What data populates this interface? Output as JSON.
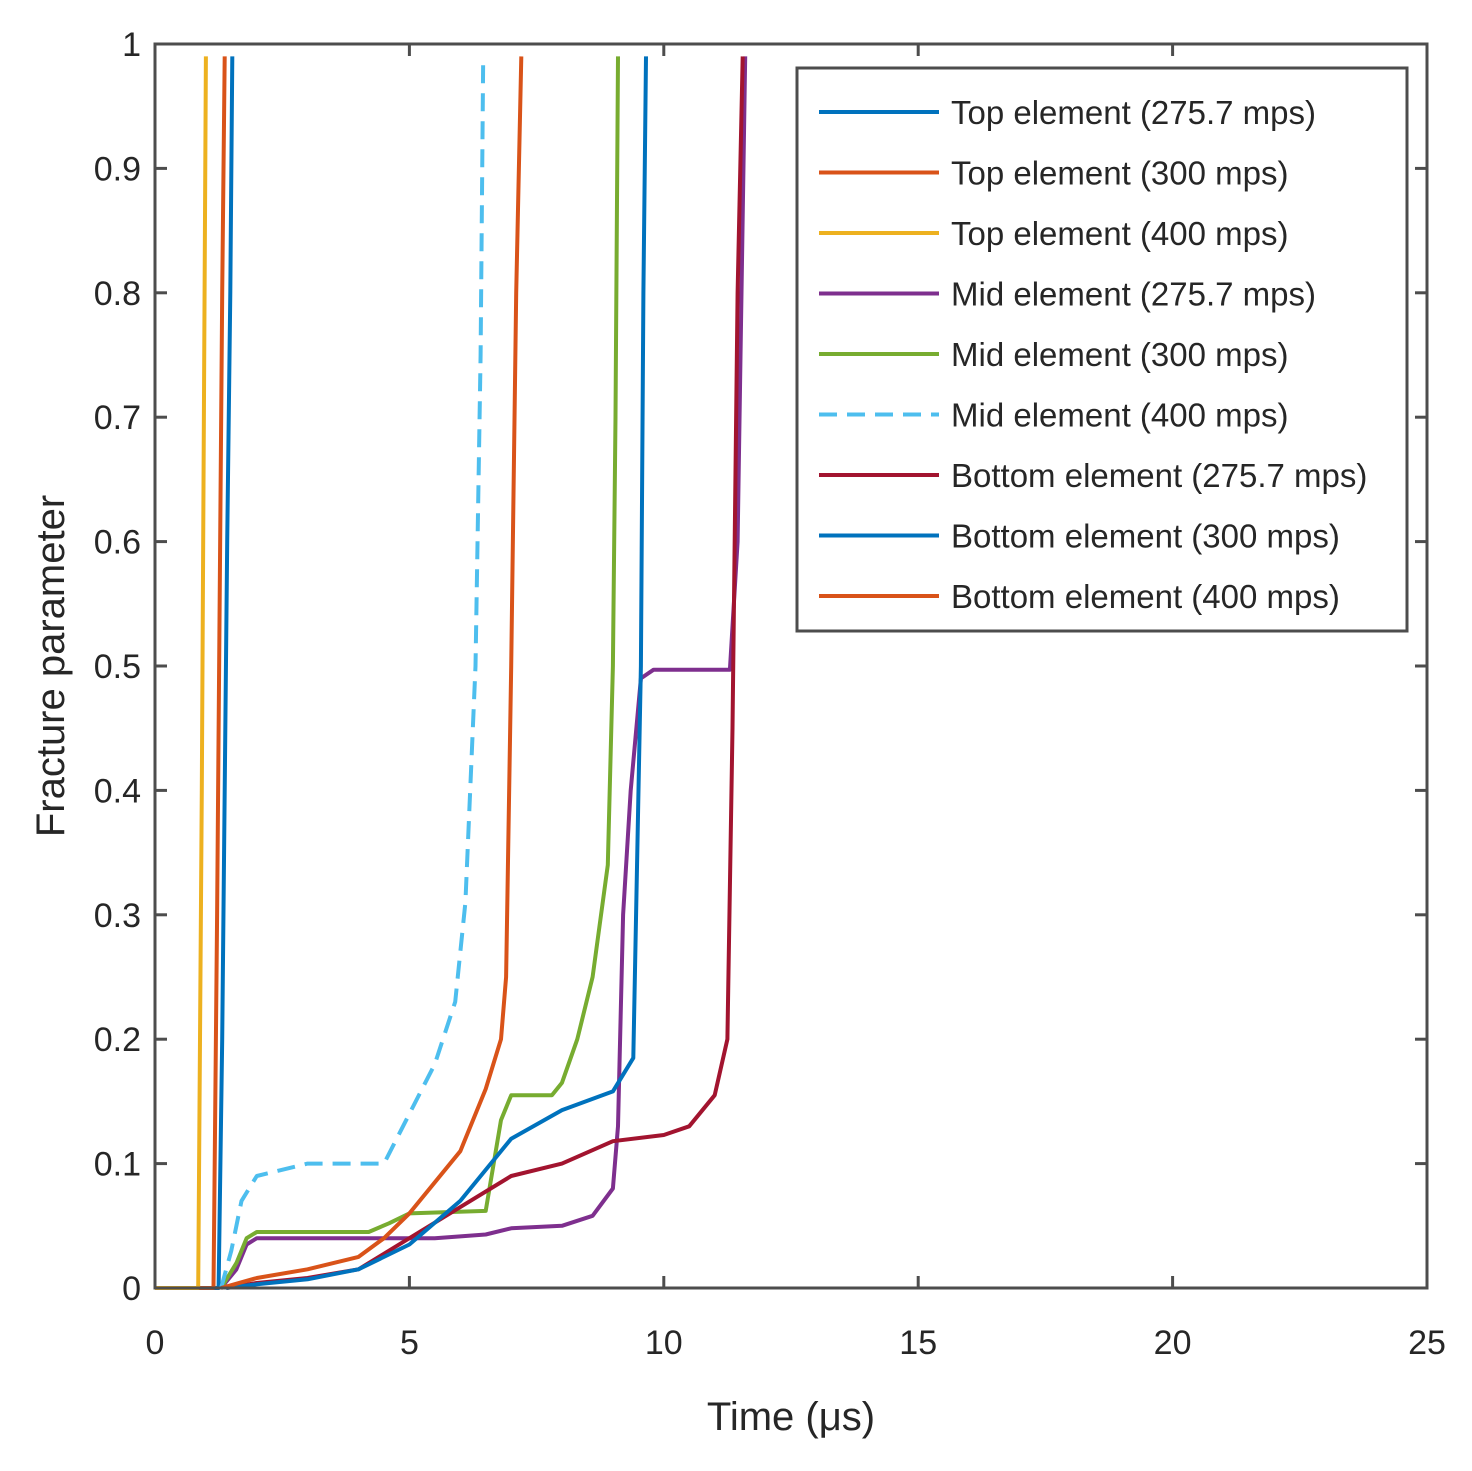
{
  "chart_data": {
    "type": "line",
    "title": "",
    "xlabel": "Time (μs)",
    "ylabel": "Fracture parameter",
    "xlim": [
      0,
      25
    ],
    "ylim": [
      0,
      1
    ],
    "xticks": [
      0,
      5,
      10,
      15,
      20,
      25
    ],
    "yticks": [
      0,
      0.1,
      0.2,
      0.3,
      0.4,
      0.5,
      0.6,
      0.7,
      0.8,
      0.9,
      1
    ],
    "xtick_labels": [
      "0",
      "5",
      "10",
      "15",
      "20",
      "25"
    ],
    "ytick_labels": [
      "0",
      "0.1",
      "0.2",
      "0.3",
      "0.4",
      "0.5",
      "0.6",
      "0.7",
      "0.8",
      "0.9",
      "1"
    ],
    "grid": false,
    "legend_position": "top-right",
    "series": [
      {
        "name": "Top element (275.7 mps)",
        "color": "#0072BD",
        "dash": "solid",
        "points": [
          [
            0,
            0
          ],
          [
            1.25,
            0
          ],
          [
            1.32,
            0.2
          ],
          [
            1.42,
            0.6
          ],
          [
            1.48,
            0.8
          ],
          [
            1.52,
            0.99
          ]
        ]
      },
      {
        "name": "Top element (300 mps)",
        "color": "#D95319",
        "dash": "solid",
        "points": [
          [
            0,
            0
          ],
          [
            1.15,
            0
          ],
          [
            1.22,
            0.3
          ],
          [
            1.32,
            0.8
          ],
          [
            1.37,
            0.99
          ]
        ]
      },
      {
        "name": "Top element (400 mps)",
        "color": "#EDB120",
        "dash": "solid",
        "points": [
          [
            0,
            0
          ],
          [
            0.85,
            0
          ],
          [
            0.92,
            0.4
          ],
          [
            1.0,
            0.99
          ]
        ]
      },
      {
        "name": "Mid element (275.7 mps)",
        "color": "#7E2F8E",
        "dash": "solid",
        "points": [
          [
            1.3,
            0
          ],
          [
            1.6,
            0.015
          ],
          [
            1.8,
            0.035
          ],
          [
            2.0,
            0.04
          ],
          [
            4.5,
            0.04
          ],
          [
            5.5,
            0.04
          ],
          [
            6.5,
            0.043
          ],
          [
            7.0,
            0.048
          ],
          [
            8.0,
            0.05
          ],
          [
            8.6,
            0.058
          ],
          [
            9.0,
            0.08
          ],
          [
            9.1,
            0.13
          ],
          [
            9.2,
            0.3
          ],
          [
            9.35,
            0.4
          ],
          [
            9.55,
            0.49
          ],
          [
            9.8,
            0.497
          ],
          [
            11.3,
            0.497
          ],
          [
            11.45,
            0.6
          ],
          [
            11.6,
            0.99
          ]
        ]
      },
      {
        "name": "Mid element (300 mps)",
        "color": "#77AC30",
        "dash": "solid",
        "points": [
          [
            1.3,
            0
          ],
          [
            1.6,
            0.02
          ],
          [
            1.8,
            0.04
          ],
          [
            2.0,
            0.045
          ],
          [
            4.2,
            0.045
          ],
          [
            4.6,
            0.052
          ],
          [
            5.0,
            0.06
          ],
          [
            6.5,
            0.062
          ],
          [
            6.8,
            0.135
          ],
          [
            7.0,
            0.155
          ],
          [
            7.5,
            0.155
          ],
          [
            7.8,
            0.155
          ],
          [
            8.0,
            0.165
          ],
          [
            8.3,
            0.2
          ],
          [
            8.6,
            0.25
          ],
          [
            8.9,
            0.34
          ],
          [
            9.0,
            0.5
          ],
          [
            9.05,
            0.7
          ],
          [
            9.1,
            0.99
          ]
        ]
      },
      {
        "name": "Mid element (400 mps)",
        "color": "#4DBEEE",
        "dash": "dashed",
        "points": [
          [
            1.3,
            0
          ],
          [
            1.5,
            0.03
          ],
          [
            1.7,
            0.07
          ],
          [
            2.0,
            0.09
          ],
          [
            3.0,
            0.1
          ],
          [
            4.5,
            0.1
          ],
          [
            5.0,
            0.14
          ],
          [
            5.5,
            0.18
          ],
          [
            5.9,
            0.23
          ],
          [
            6.1,
            0.31
          ],
          [
            6.3,
            0.5
          ],
          [
            6.4,
            0.75
          ],
          [
            6.45,
            0.99
          ]
        ]
      },
      {
        "name": "Bottom element (275.7 mps)",
        "color": "#A2142F",
        "dash": "solid",
        "points": [
          [
            1.4,
            0
          ],
          [
            2.0,
            0.004
          ],
          [
            3.0,
            0.008
          ],
          [
            4.0,
            0.015
          ],
          [
            5.0,
            0.04
          ],
          [
            6.0,
            0.065
          ],
          [
            7.0,
            0.09
          ],
          [
            8.0,
            0.1
          ],
          [
            9.0,
            0.118
          ],
          [
            10.0,
            0.123
          ],
          [
            10.5,
            0.13
          ],
          [
            11.0,
            0.155
          ],
          [
            11.25,
            0.2
          ],
          [
            11.35,
            0.45
          ],
          [
            11.45,
            0.8
          ],
          [
            11.55,
            0.99
          ]
        ]
      },
      {
        "name": "Bottom element (300 mps)",
        "color": "#0072BD",
        "dash": "solid",
        "points": [
          [
            1.4,
            0
          ],
          [
            2.0,
            0.003
          ],
          [
            3.0,
            0.007
          ],
          [
            4.0,
            0.015
          ],
          [
            5.0,
            0.035
          ],
          [
            6.0,
            0.07
          ],
          [
            7.0,
            0.12
          ],
          [
            8.0,
            0.143
          ],
          [
            9.0,
            0.158
          ],
          [
            9.4,
            0.185
          ],
          [
            9.55,
            0.5
          ],
          [
            9.6,
            0.8
          ],
          [
            9.65,
            0.99
          ]
        ]
      },
      {
        "name": "Bottom element (400 mps)",
        "color": "#D95319",
        "dash": "solid",
        "points": [
          [
            1.3,
            0
          ],
          [
            2.0,
            0.008
          ],
          [
            3.0,
            0.015
          ],
          [
            4.0,
            0.025
          ],
          [
            4.5,
            0.04
          ],
          [
            5.0,
            0.06
          ],
          [
            6.0,
            0.11
          ],
          [
            6.5,
            0.16
          ],
          [
            6.8,
            0.2
          ],
          [
            6.9,
            0.25
          ],
          [
            7.0,
            0.5
          ],
          [
            7.1,
            0.8
          ],
          [
            7.2,
            0.99
          ]
        ]
      }
    ]
  }
}
